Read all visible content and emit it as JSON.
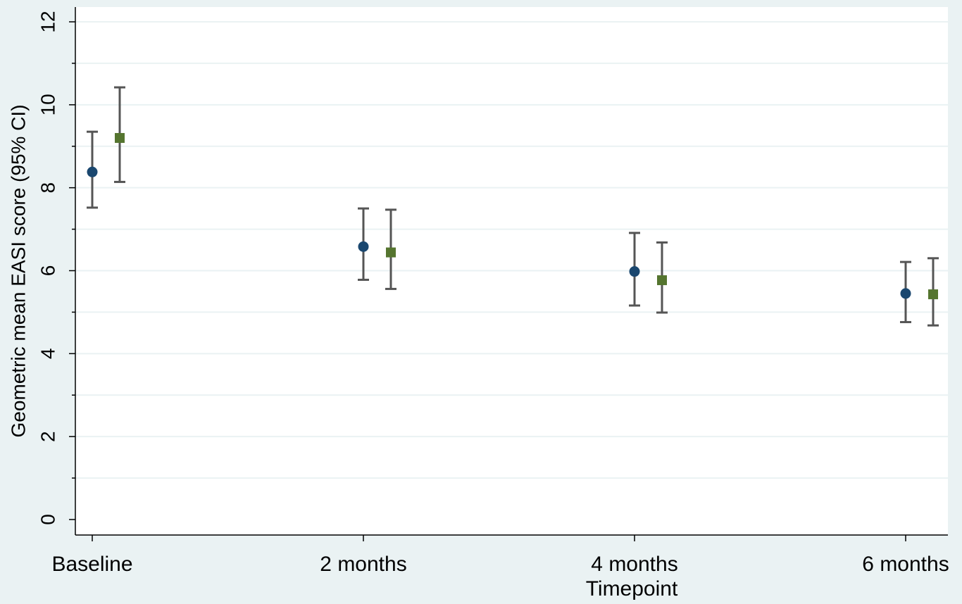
{
  "chart_data": {
    "type": "errorbar",
    "x_label": "Timepoint",
    "y_label": "Geometric mean EASI score (95% CI)",
    "categories": [
      "Baseline",
      "2 months",
      "4 months",
      "6 months"
    ],
    "series": [
      {
        "color": "#1a476f",
        "marker": "circle",
        "values": [
          8.38,
          6.58,
          5.98,
          5.45
        ],
        "ci_low": [
          7.52,
          5.78,
          5.16,
          4.76
        ],
        "ci_high": [
          9.35,
          7.5,
          6.91,
          6.21
        ]
      },
      {
        "color": "#55752f",
        "marker": "square",
        "values": [
          9.2,
          6.44,
          5.77,
          5.43
        ],
        "ci_low": [
          8.14,
          5.56,
          4.99,
          4.68
        ],
        "ci_high": [
          10.42,
          7.47,
          6.68,
          6.3
        ]
      }
    ],
    "ylim": [
      0,
      12
    ],
    "yticks": [
      0,
      2,
      4,
      6,
      8,
      10,
      12
    ],
    "yminorticks": [
      1,
      3,
      5,
      7,
      9,
      11
    ],
    "grid": true,
    "errorbar_color": "#555555"
  }
}
